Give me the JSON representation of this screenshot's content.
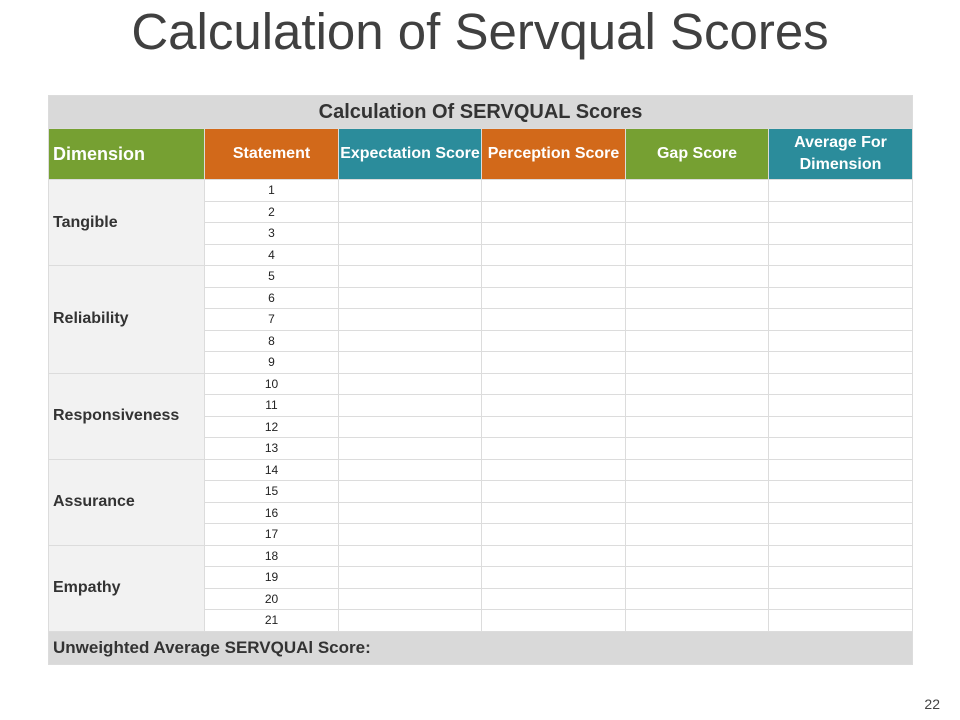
{
  "title": "Calculation of Servqual Scores",
  "table": {
    "caption": "Calculation Of SERVQUAL Scores",
    "headers": [
      "Dimension",
      "Statement",
      "Expectation Score",
      "Perception Score",
      "Gap Score",
      "Average For Dimension"
    ],
    "groups": [
      {
        "dimension": "Tangible",
        "statements": [
          1,
          2,
          3,
          4
        ]
      },
      {
        "dimension": "Reliability",
        "statements": [
          5,
          6,
          7,
          8,
          9
        ]
      },
      {
        "dimension": "Responsiveness",
        "statements": [
          10,
          11,
          12,
          13
        ]
      },
      {
        "dimension": "Assurance",
        "statements": [
          14,
          15,
          16,
          17
        ]
      },
      {
        "dimension": "Empathy",
        "statements": [
          18,
          19,
          20,
          21
        ]
      }
    ],
    "footer": "Unweighted Average SERVQUAl Score:"
  },
  "page_number": 22
}
